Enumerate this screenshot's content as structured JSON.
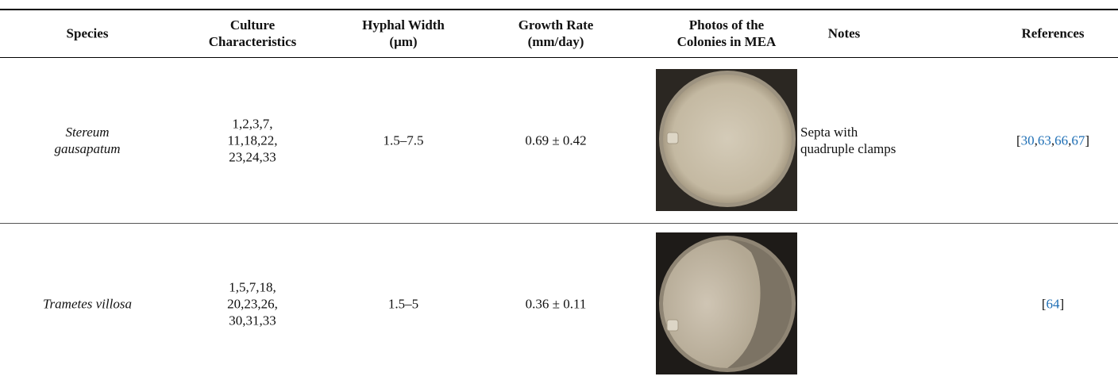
{
  "header": {
    "columns": [
      [
        "Species"
      ],
      [
        "Culture",
        "Characteristics"
      ],
      [
        "Hyphal Width",
        "(μm)"
      ],
      [
        "Growth Rate",
        "(mm/day)"
      ],
      [
        "Photos of the",
        "Colonies in MEA"
      ],
      [
        "Notes"
      ],
      [
        "References"
      ]
    ]
  },
  "table": {
    "rows": [
      {
        "species": [
          "Stereum",
          "gausapatum"
        ],
        "culture": [
          "1,2,3,7,",
          "11,18,22,",
          "23,24,33"
        ],
        "hyphal_width": "1.5–7.5",
        "growth_rate": "0.69 ± 0.42",
        "notes": [
          "Septa with",
          "quadruple clamps"
        ],
        "references": [
          "[",
          "30",
          ",",
          "63",
          ",",
          "66",
          ",",
          "67",
          "]"
        ]
      },
      {
        "species": [
          "Trametes villosa"
        ],
        "culture": [
          "1,5,7,18,",
          "20,23,26,",
          "30,31,33"
        ],
        "hyphal_width": "1.5–5",
        "growth_rate": "0.36 ± 0.11",
        "references": [
          "[",
          "64",
          "]"
        ]
      }
    ]
  }
}
